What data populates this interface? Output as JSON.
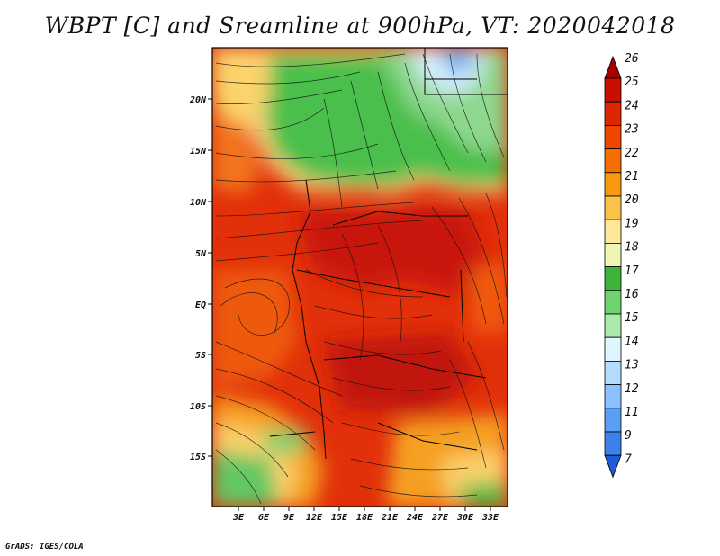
{
  "title": "WBPT [C] and Sreamline at 900hPa, VT: 2020042018",
  "footer": "GrADS: IGES/COLA",
  "map": {
    "lat_labels": [
      "20N",
      "15N",
      "10N",
      "5N",
      "EQ",
      "5S",
      "10S",
      "15S"
    ],
    "lon_labels": [
      "3E",
      "6E",
      "9E",
      "12E",
      "15E",
      "18E",
      "21E",
      "24E",
      "27E",
      "30E",
      "33E"
    ]
  },
  "colorbar": {
    "labels": [
      "26",
      "25",
      "24",
      "23",
      "22",
      "21",
      "20",
      "19",
      "18",
      "17",
      "16",
      "15",
      "14",
      "13",
      "12",
      "11",
      "9",
      "7"
    ],
    "colors": [
      "#a50000",
      "#c80f00",
      "#dc2800",
      "#f04600",
      "#f56e00",
      "#f89a10",
      "#fbc24a",
      "#fde89a",
      "#f0f5b4",
      "#3cb43c",
      "#6ed26e",
      "#aaeaaa",
      "#dff5ff",
      "#b4dcff",
      "#8cc0ff",
      "#5a9ef5",
      "#3c82eb",
      "#1e5adc"
    ]
  }
}
